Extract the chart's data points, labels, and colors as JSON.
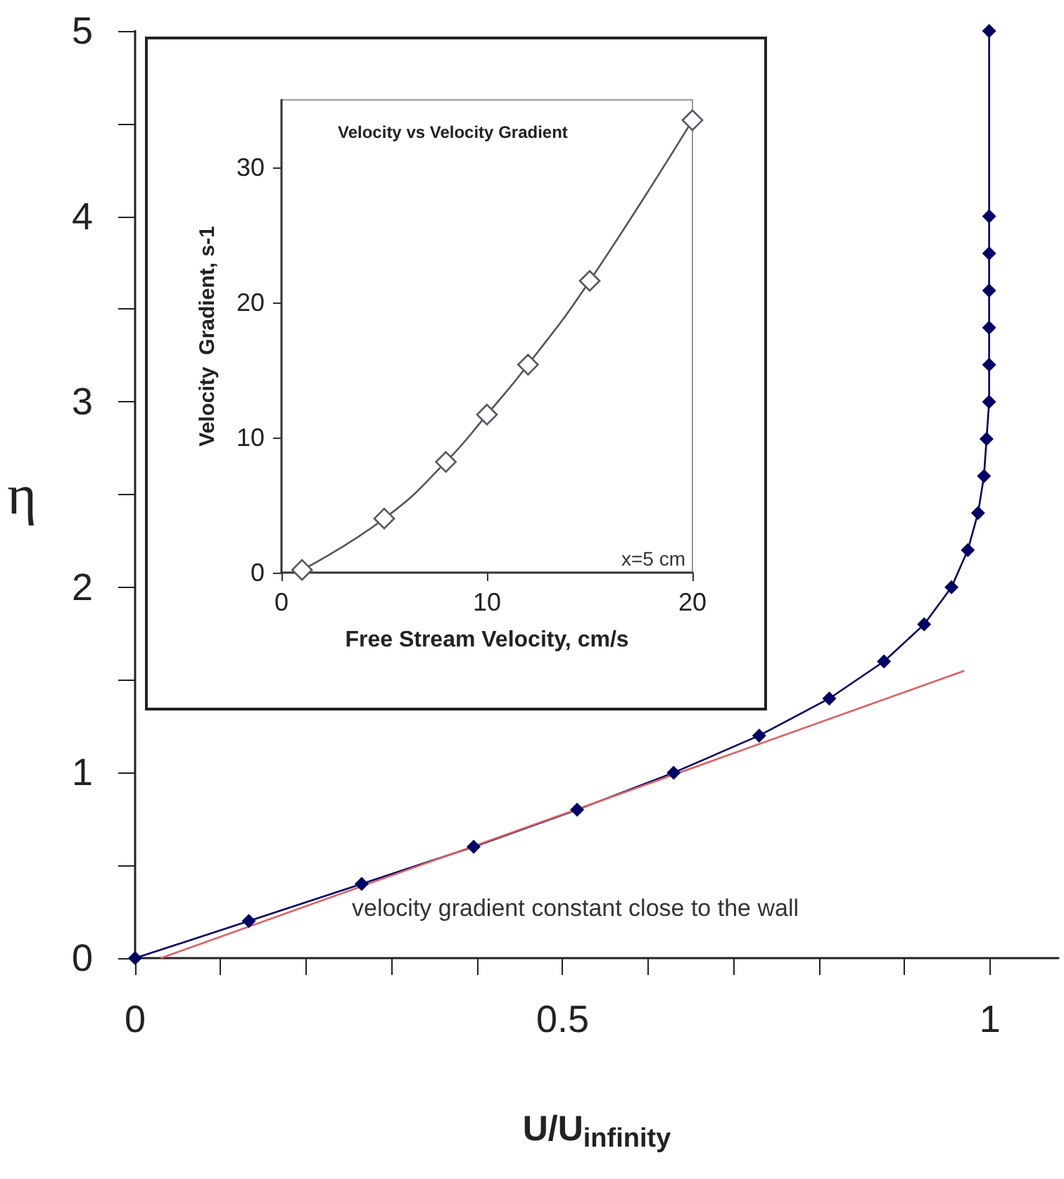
{
  "chart_data": [
    {
      "type": "line",
      "xlabel": "U/U$_{infinity}$",
      "ylabel": "η",
      "xlim": [
        0,
        1.08
      ],
      "ylim": [
        0,
        5
      ],
      "xticks": [
        0,
        {
          "value": 0.1,
          "label": null
        },
        {
          "value": 0.2,
          "label": null
        },
        {
          "value": 0.3,
          "label": null
        },
        {
          "value": 0.4,
          "label": null
        },
        0.5,
        {
          "value": 0.6,
          "label": null
        },
        {
          "value": 0.7,
          "label": null
        },
        {
          "value": 0.8,
          "label": null
        },
        {
          "value": 0.9,
          "label": null
        },
        1
      ],
      "yticks": [
        0,
        {
          "value": 0.5,
          "label": null
        },
        1,
        {
          "value": 1.5,
          "label": null
        },
        2,
        {
          "value": 2.5,
          "label": null
        },
        3,
        {
          "value": 3.5,
          "label": null
        },
        4,
        {
          "value": 4.5,
          "label": null
        },
        5
      ],
      "grid": false,
      "series": [
        {
          "color": "#000066",
          "marker": "diamond",
          "x": [
            0,
            0.133,
            0.265,
            0.396,
            0.517,
            0.63,
            0.73,
            0.812,
            0.876,
            0.923,
            0.955,
            0.974,
            0.986,
            0.993,
            0.996,
            0.999,
            0.999,
            0.999,
            0.999,
            0.999,
            0.999,
            0.999
          ],
          "values": [
            0,
            0.2,
            0.4,
            0.6,
            0.8,
            1.0,
            1.2,
            1.4,
            1.6,
            1.8,
            2.0,
            2.2,
            2.4,
            2.6,
            2.8,
            3.0,
            3.2,
            3.4,
            3.6,
            3.8,
            4.0,
            5.0
          ]
        },
        {
          "color": "#e06060",
          "marker": "none",
          "x": [
            0.03,
            0.97
          ],
          "values": [
            0,
            1.55
          ]
        }
      ],
      "annotations": [
        "velocity gradient constant close to the wall"
      ]
    },
    {
      "type": "line",
      "title": "Velocity vs Velocity Gradient",
      "xlabel": "Free Stream Velocity, cm/s",
      "ylabel": "Velocity  Gradient, s-1",
      "xlim": [
        0,
        20
      ],
      "ylim": [
        0,
        35
      ],
      "xticks": [
        0,
        10,
        20
      ],
      "yticks": [
        0,
        10,
        20,
        30
      ],
      "grid": false,
      "series": [
        {
          "color": "#555566",
          "marker": "diamond",
          "x": [
            1,
            5,
            8,
            10,
            12,
            15,
            20
          ],
          "values": [
            0.2,
            4,
            8.2,
            11.7,
            15.4,
            21.6,
            33.5
          ]
        }
      ],
      "annotations": [
        "x=5 cm"
      ]
    }
  ]
}
